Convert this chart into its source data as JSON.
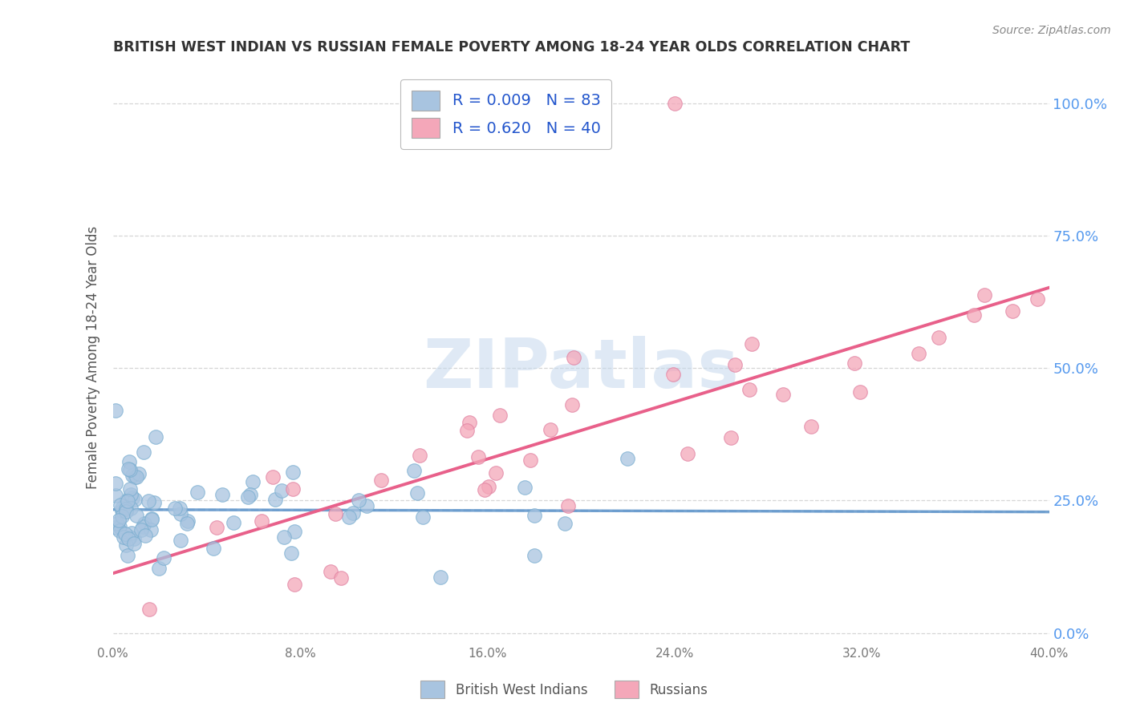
{
  "title": "BRITISH WEST INDIAN VS RUSSIAN FEMALE POVERTY AMONG 18-24 YEAR OLDS CORRELATION CHART",
  "source": "Source: ZipAtlas.com",
  "ylabel": "Female Poverty Among 18-24 Year Olds",
  "yticks": [
    "0.0%",
    "25.0%",
    "50.0%",
    "75.0%",
    "100.0%"
  ],
  "ytick_vals": [
    0.0,
    0.25,
    0.5,
    0.75,
    1.0
  ],
  "xtick_vals": [
    0.0,
    0.08,
    0.16,
    0.24,
    0.32,
    0.4
  ],
  "xtick_labels": [
    "0.0%",
    "8.0%",
    "16.0%",
    "24.0%",
    "32.0%",
    "40.0%"
  ],
  "xrange": [
    0.0,
    0.4
  ],
  "yrange": [
    -0.02,
    1.06
  ],
  "legend_label_1": "British West Indians",
  "legend_label_2": "Russians",
  "R1": "0.009",
  "N1": "83",
  "R2": "0.620",
  "N2": "40",
  "color_bwi": "#a8c4e0",
  "color_bwi_edge": "#7aaed0",
  "color_russian": "#f4a7b9",
  "color_russian_edge": "#e080a0",
  "color_bwi_line": "#6699cc",
  "color_russian_line": "#e8608a",
  "watermark_color": "#c5d8ed",
  "watermark_text": "ZIPatlas",
  "grid_color": "#cccccc",
  "title_color": "#333333",
  "source_color": "#888888",
  "ylabel_color": "#555555",
  "tick_color": "#777777",
  "right_tick_color": "#5599ee",
  "legend_text_color": "#2255cc",
  "bottom_legend_color": "#555555"
}
